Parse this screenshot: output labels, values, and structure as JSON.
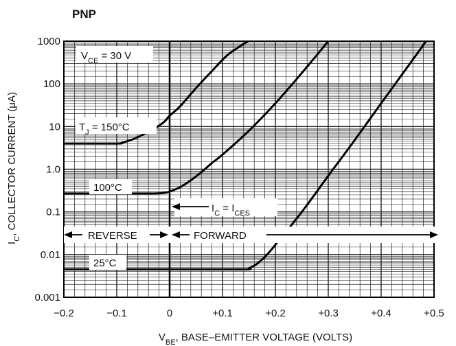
{
  "chart_data": {
    "type": "line",
    "title": "PNP",
    "xlabel": {
      "main": "V",
      "sub": "BE",
      "rest": ", BASE–EMITTER VOLTAGE (VOLTS)"
    },
    "ylabel": {
      "main": "I",
      "sub": "C",
      "rest": ", COLLECTOR CURRENT (μA)"
    },
    "x_scale": "linear",
    "y_scale": "log",
    "xlim": [
      -0.2,
      0.5
    ],
    "ylim": [
      0.001,
      1000
    ],
    "x_tick_labels": [
      "−0.2",
      "−0.1",
      "0",
      "+0.1",
      "+0.2",
      "+0.3",
      "+0.4",
      "+0.5"
    ],
    "y_tick_labels": [
      "0.001",
      "0.01",
      "0.1",
      "1.0",
      "10",
      "100",
      "1000"
    ],
    "grid": true,
    "series": [
      {
        "name": "T_J = 150°C",
        "x": [
          -0.2,
          -0.1,
          -0.09,
          -0.07,
          -0.05,
          -0.03,
          -0.01,
          0,
          0.02,
          0.05,
          0.08,
          0.11,
          0.148
        ],
        "y": [
          4,
          4,
          4.2,
          5,
          6.5,
          8.8,
          13,
          18,
          30,
          80,
          200,
          480,
          1000
        ]
      },
      {
        "name": "100°C",
        "x": [
          -0.2,
          -0.1,
          -0.03,
          -0.01,
          0,
          0.02,
          0.04,
          0.06,
          0.08,
          0.1,
          0.15,
          0.2,
          0.25,
          0.3
        ],
        "y": [
          0.27,
          0.27,
          0.27,
          0.28,
          0.3,
          0.38,
          0.55,
          0.85,
          1.4,
          2.2,
          8,
          35,
          180,
          1000
        ]
      },
      {
        "name": "25°C",
        "x": [
          -0.2,
          0,
          0.14,
          0.15,
          0.16,
          0.17,
          0.18,
          0.19,
          0.2,
          0.25,
          0.3,
          0.35,
          0.4,
          0.45,
          0.485
        ],
        "y": [
          0.0045,
          0.0045,
          0.0045,
          0.0048,
          0.0055,
          0.0068,
          0.0088,
          0.012,
          0.017,
          0.1,
          0.7,
          4.8,
          35,
          250,
          1000
        ]
      }
    ],
    "annotations": {
      "vce": {
        "main": "V",
        "sub": "CE",
        "rest": " = 30 V"
      },
      "tj150": {
        "main": "T",
        "sub": "J",
        "rest": " = 150°C"
      },
      "t100": "100°C",
      "t25": "25°C",
      "ices": {
        "main": "I",
        "sub1": "C",
        "mid": " = I",
        "sub2": "CES"
      },
      "reverse": "REVERSE",
      "forward": "FORWARD"
    },
    "colors": {
      "line": "#000000",
      "grid": "#222222",
      "background": "#ffffff"
    }
  }
}
